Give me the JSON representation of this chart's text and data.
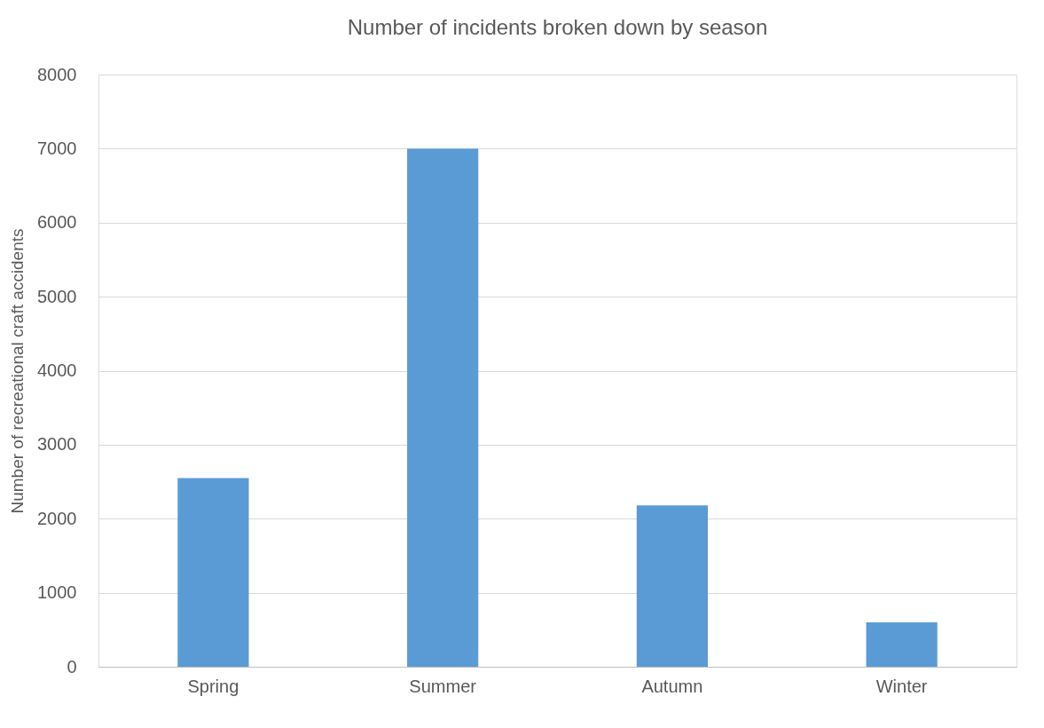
{
  "chart_data": {
    "type": "bar",
    "title": "Number of incidents broken down by season",
    "ylabel": "Number of recreational craft accidents",
    "categories": [
      "Spring",
      "Summer",
      "Autumn",
      "Winter"
    ],
    "values": [
      2550,
      7000,
      2180,
      600
    ],
    "color": "#5b9bd5",
    "ylim": [
      0,
      8000
    ],
    "yticks": [
      0,
      1000,
      2000,
      3000,
      4000,
      5000,
      6000,
      7000,
      8000
    ],
    "grid": "y"
  }
}
